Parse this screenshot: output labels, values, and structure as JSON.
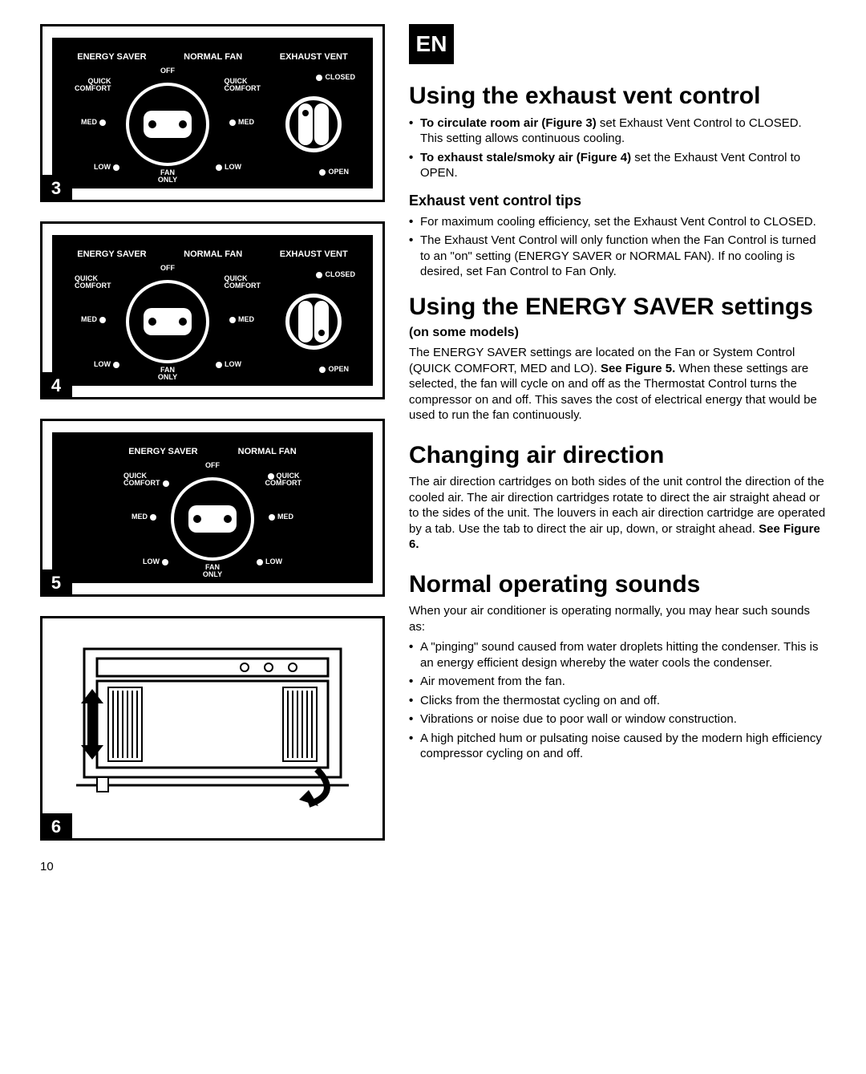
{
  "lang_badge": "EN",
  "page_number": "10",
  "figures": {
    "3": {
      "num": "3",
      "headers": {
        "es": "ENERGY SAVER",
        "nf": "NORMAL FAN",
        "ev": "EXHAUST VENT"
      },
      "dial": {
        "off": "OFF",
        "qc_l": "QUICK\nCOMFORT",
        "qc_r": "QUICK\nCOMFORT",
        "med_l": "MED",
        "med_r": "MED",
        "low_l": "LOW",
        "low_r": "LOW",
        "fan": "FAN\nONLY"
      },
      "exhaust": {
        "closed": "CLOSED",
        "open": "OPEN"
      },
      "knob_state": "closed"
    },
    "4": {
      "num": "4",
      "headers": {
        "es": "ENERGY SAVER",
        "nf": "NORMAL FAN",
        "ev": "EXHAUST VENT"
      },
      "dial": {
        "off": "OFF",
        "qc_l": "QUICK\nCOMFORT",
        "qc_r": "QUICK\nCOMFORT",
        "med_l": "MED",
        "med_r": "MED",
        "low_l": "LOW",
        "low_r": "LOW",
        "fan": "FAN\nONLY"
      },
      "exhaust": {
        "closed": "CLOSED",
        "open": "OPEN"
      },
      "knob_state": "open"
    },
    "5": {
      "num": "5",
      "headers": {
        "es": "ENERGY SAVER",
        "nf": "NORMAL FAN"
      },
      "dial": {
        "off": "OFF",
        "qc_l": "QUICK\nCOMFORT",
        "qc_r": "QUICK\nCOMFORT",
        "med_l": "MED",
        "med_r": "MED",
        "low_l": "LOW",
        "low_r": "LOW",
        "fan": "FAN\nONLY"
      }
    },
    "6": {
      "num": "6"
    }
  },
  "sections": {
    "s1": {
      "title": "Using the exhaust vent control",
      "items": [
        {
          "bold": "To circulate room air (Figure 3)",
          "rest": " set Exhaust Vent Control to CLOSED. This setting allows continuous cooling."
        },
        {
          "bold": "To exhaust stale/smoky air (Figure 4)",
          "rest": " set the Exhaust Vent Control to OPEN."
        }
      ],
      "tips_title": "Exhaust vent control tips",
      "tips": [
        "For maximum cooling efficiency, set the Exhaust Vent Control to CLOSED.",
        "The Exhaust Vent Control will only function when the Fan Control is turned to an \"on\" setting (ENERGY SAVER or NORMAL FAN). If no cooling is desired, set Fan Control to Fan Only."
      ]
    },
    "s2": {
      "title": "Using the ENERGY SAVER settings",
      "subtitle": "(on some models)",
      "para_pre": "The ENERGY SAVER settings are located on the Fan or System Control (QUICK COMFORT, MED and LO). ",
      "para_bold": "See Figure 5.",
      "para_post": " When these settings are selected, the fan will cycle on and off as the Thermostat Control turns the compressor on and off. This saves the cost of electrical energy that would be used to run the fan continuously."
    },
    "s3": {
      "title": "Changing air direction",
      "para_pre": "The air direction cartridges on both sides of the unit control the direction of the cooled air. The air direction cartridges rotate to direct the air straight ahead or to the sides of the unit. The louvers in each air direction cartridge are operated by a tab. Use the tab to direct the air up, down, or straight ahead. ",
      "para_bold": "See Figure 6."
    },
    "s4": {
      "title": "Normal operating sounds",
      "lead": "When your air conditioner is operating normally, you may hear such sounds as:",
      "items": [
        "A \"pinging\" sound caused from water droplets hitting the condenser. This is an energy efficient design whereby the water cools the condenser.",
        "Air movement from the fan.",
        "Clicks from the thermostat cycling on and off.",
        "Vibrations or noise due to poor wall or window construction.",
        "A high pitched hum or pulsating noise caused by the modern high efficiency compressor cycling on and off."
      ]
    }
  }
}
